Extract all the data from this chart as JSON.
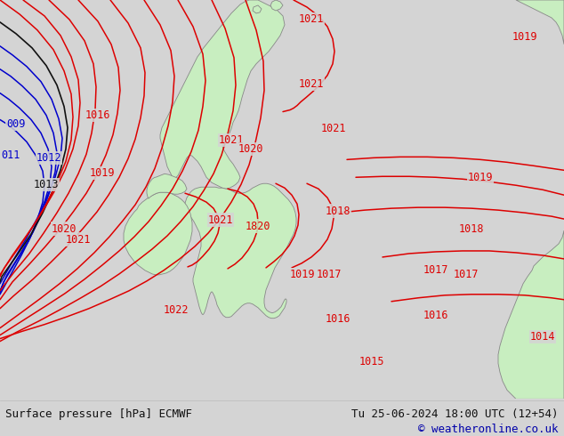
{
  "footer_left": "Surface pressure [hPa] ECMWF",
  "footer_right": "Tu 25-06-2024 18:00 UTC (12+54)",
  "footer_url": "© weatheronline.co.uk",
  "bg_color": "#d4d4d4",
  "land_color": "#c8eec0",
  "coast_color": "#888888",
  "isobar_red": "#dd0000",
  "isobar_blue": "#0000cc",
  "isobar_black": "#111111",
  "footer_bg": "#e0e0e0",
  "footer_text": "#111111",
  "footer_url_color": "#0000aa",
  "label_fontsize": 8.5,
  "isobar_lw": 1.1
}
